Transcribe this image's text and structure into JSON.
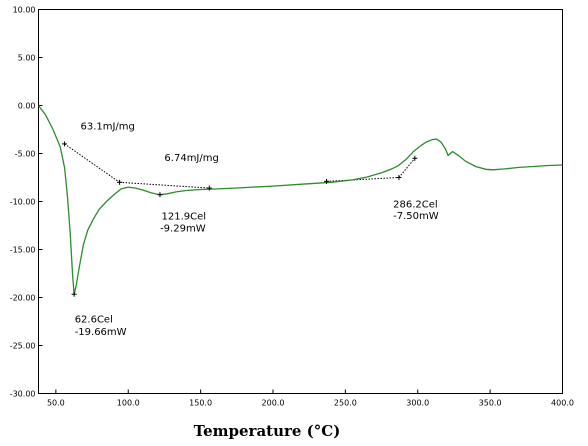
{
  "chart_data": {
    "type": "line",
    "title": "",
    "xlabel": "Temperature (°C)",
    "ylabel": "",
    "xlim": [
      38,
      400
    ],
    "ylim": [
      -30,
      10
    ],
    "grid": false,
    "legend": "none",
    "x_ticks": [
      "50.0",
      "100.0",
      "150.0",
      "200.0",
      "250.0",
      "300.0",
      "350.0",
      "400.0"
    ],
    "y_ticks": [
      "10.00",
      "5.00",
      "0.00",
      "-5.00",
      "-10.00",
      "-15.00",
      "-20.00",
      "-25.00",
      "-30.00"
    ],
    "colors": {
      "curve": "#2e8b2e",
      "baseline": "#000000",
      "frame": "#000000"
    },
    "series": [
      {
        "points": [
          [
            38,
            0.0
          ],
          [
            43,
            -1.0
          ],
          [
            48,
            -2.5
          ],
          [
            53,
            -4.3
          ],
          [
            56,
            -6.5
          ],
          [
            58,
            -9.5
          ],
          [
            60,
            -13.5
          ],
          [
            61.5,
            -17.5
          ],
          [
            62.6,
            -19.66
          ],
          [
            64,
            -18.8
          ],
          [
            66,
            -17.0
          ],
          [
            69,
            -14.5
          ],
          [
            72,
            -13.0
          ],
          [
            76,
            -11.8
          ],
          [
            80,
            -10.8
          ],
          [
            85,
            -10.0
          ],
          [
            90,
            -9.3
          ],
          [
            95,
            -8.7
          ],
          [
            100,
            -8.5
          ],
          [
            105,
            -8.6
          ],
          [
            110,
            -8.8
          ],
          [
            116,
            -9.1
          ],
          [
            121.9,
            -9.29
          ],
          [
            127,
            -9.2
          ],
          [
            133,
            -9.0
          ],
          [
            140,
            -8.85
          ],
          [
            150,
            -8.75
          ],
          [
            160,
            -8.7
          ],
          [
            180,
            -8.55
          ],
          [
            200,
            -8.4
          ],
          [
            220,
            -8.2
          ],
          [
            240,
            -8.0
          ],
          [
            255,
            -7.75
          ],
          [
            265,
            -7.45
          ],
          [
            275,
            -7.0
          ],
          [
            282,
            -6.6
          ],
          [
            286.2,
            -6.3
          ],
          [
            292,
            -5.6
          ],
          [
            297,
            -4.8
          ],
          [
            302,
            -4.2
          ],
          [
            306,
            -3.8
          ],
          [
            310,
            -3.55
          ],
          [
            313,
            -3.5
          ],
          [
            316,
            -3.8
          ],
          [
            319,
            -4.5
          ],
          [
            321,
            -5.2
          ],
          [
            324,
            -4.8
          ],
          [
            328,
            -5.2
          ],
          [
            333,
            -5.8
          ],
          [
            340,
            -6.35
          ],
          [
            347,
            -6.65
          ],
          [
            352,
            -6.7
          ],
          [
            360,
            -6.6
          ],
          [
            370,
            -6.45
          ],
          [
            380,
            -6.35
          ],
          [
            390,
            -6.25
          ],
          [
            400,
            -6.2
          ]
        ]
      }
    ],
    "baselines": [
      [
        [
          56,
          -4.0
        ],
        [
          94,
          -8.0
        ]
      ],
      [
        [
          94,
          -8.0
        ],
        [
          156,
          -8.6
        ]
      ],
      [
        [
          237,
          -7.9
        ],
        [
          287,
          -7.5
        ]
      ],
      [
        [
          287,
          -7.5
        ],
        [
          298,
          -5.5
        ]
      ]
    ],
    "markers": [
      [
        56,
        -4.0
      ],
      [
        62.6,
        -19.66
      ],
      [
        94,
        -8.0
      ],
      [
        121.9,
        -9.29
      ],
      [
        156,
        -8.6
      ],
      [
        237,
        -7.9
      ],
      [
        287,
        -7.5
      ],
      [
        298,
        -5.5
      ]
    ],
    "annotations": [
      {
        "text": "63.1mJ/mg",
        "x": 67,
        "y": -2.5
      },
      {
        "text": "6.74mJ/mg",
        "x": 125,
        "y": -5.8
      },
      {
        "text": "121.9Cel",
        "x": 123,
        "y": -11.9
      },
      {
        "text": "-9.29mW",
        "x": 122,
        "y": -13.1
      },
      {
        "text": "62.6Cel",
        "x": 63,
        "y": -22.6
      },
      {
        "text": "-19.66mW",
        "x": 63,
        "y": -23.9
      },
      {
        "text": "286.2Cel",
        "x": 283,
        "y": -10.6
      },
      {
        "text": "-7.50mW",
        "x": 283,
        "y": -11.8
      }
    ]
  }
}
